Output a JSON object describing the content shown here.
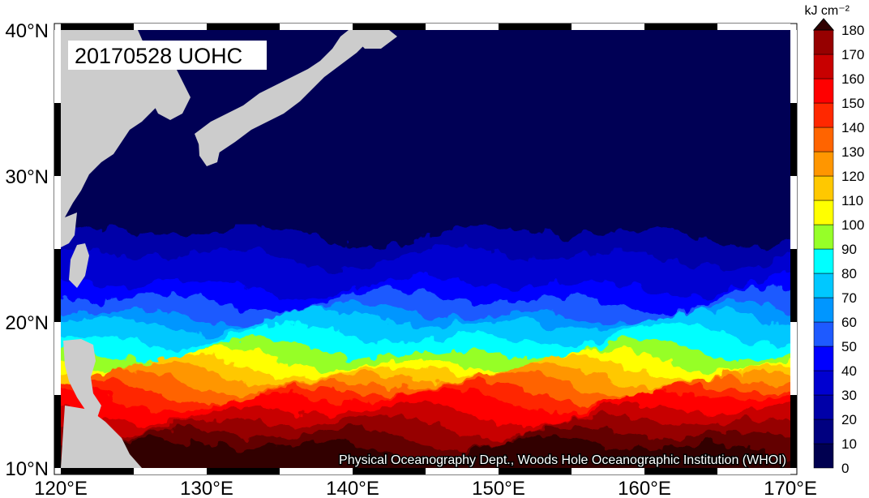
{
  "map": {
    "title": "20170528 UOHC",
    "credit": "Physical Oceanography Dept., Woods Hole Oceanographic Institution (WHOI)",
    "lat_labels": [
      "10°N",
      "20°N",
      "30°N",
      "40°N"
    ],
    "lon_labels": [
      "120°E",
      "130°E",
      "140°E",
      "150°E",
      "160°E",
      "170°E"
    ],
    "lat_range": [
      10,
      40
    ],
    "lon_range": [
      120,
      170
    ],
    "land_color": "#cccccc",
    "ocean_background": "#000055"
  },
  "colorbar": {
    "unit": "kJ cm⁻²",
    "tick_labels": [
      "0",
      "10",
      "20",
      "30",
      "40",
      "50",
      "60",
      "70",
      "80",
      "90",
      "100",
      "110",
      "120",
      "130",
      "140",
      "150",
      "160",
      "170",
      "180"
    ],
    "colors": [
      "#000050",
      "#000080",
      "#0000a8",
      "#0000d0",
      "#0000ff",
      "#1e5aff",
      "#0096ff",
      "#00c8ff",
      "#00ffff",
      "#96ff28",
      "#ffff00",
      "#ffc800",
      "#ff9600",
      "#ff6400",
      "#ff2800",
      "#ff0000",
      "#c80000",
      "#960000",
      "#640000",
      "#300000"
    ],
    "extend": "max"
  }
}
